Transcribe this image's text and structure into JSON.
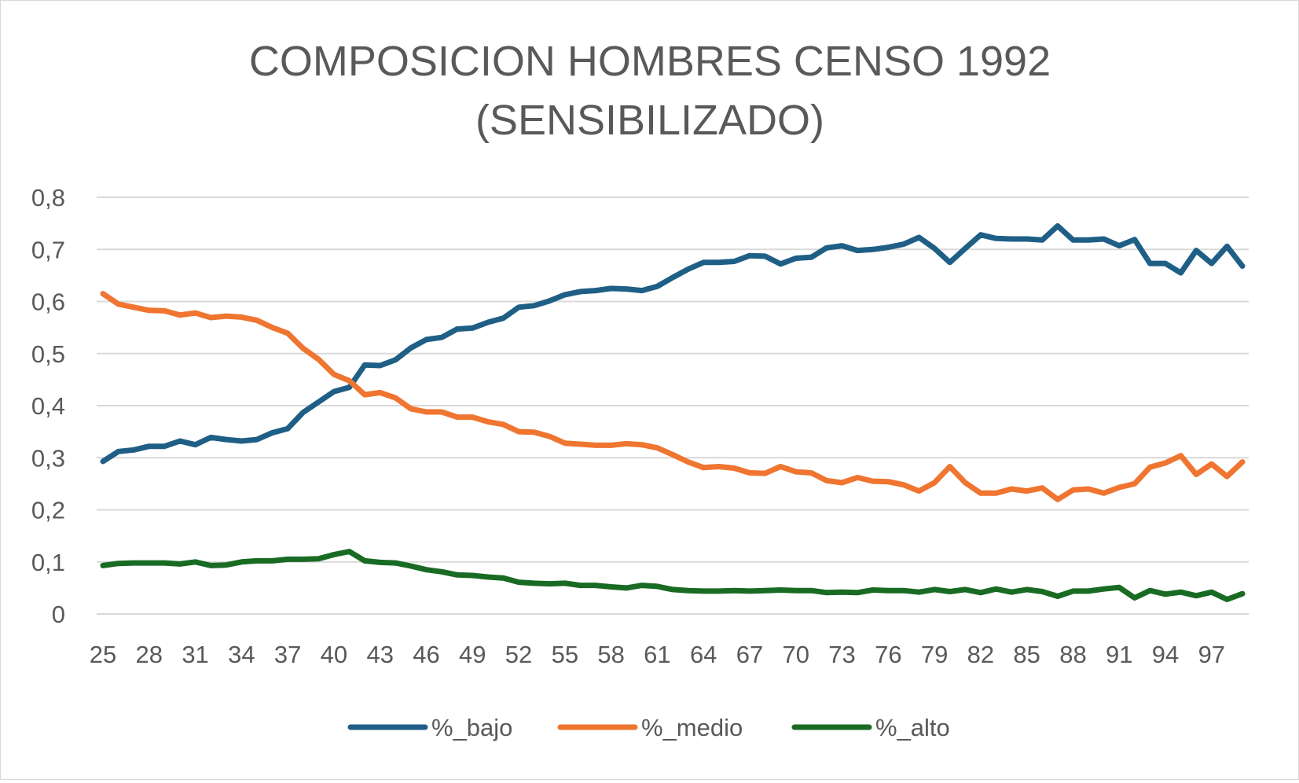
{
  "chart_data": {
    "type": "line",
    "title": [
      "COMPOSICION HOMBRES CENSO 1992",
      "(SENSIBILIZADO)"
    ],
    "xlabel": "",
    "ylabel": "",
    "x": [
      25,
      26,
      27,
      28,
      29,
      30,
      31,
      32,
      33,
      34,
      35,
      36,
      37,
      38,
      39,
      40,
      41,
      42,
      43,
      44,
      45,
      46,
      47,
      48,
      49,
      50,
      51,
      52,
      53,
      54,
      55,
      56,
      57,
      58,
      59,
      60,
      61,
      62,
      63,
      64,
      65,
      66,
      67,
      68,
      69,
      70,
      71,
      72,
      73,
      74,
      75,
      76,
      77,
      78,
      79,
      80,
      81,
      82,
      83,
      84,
      85,
      86,
      87,
      88,
      89,
      90,
      91,
      92,
      93,
      94,
      95,
      96,
      97,
      98,
      99
    ],
    "x_tick_labels": [
      "25",
      "28",
      "31",
      "34",
      "37",
      "40",
      "43",
      "46",
      "49",
      "52",
      "55",
      "58",
      "61",
      "64",
      "67",
      "70",
      "73",
      "76",
      "79",
      "82",
      "85",
      "88",
      "91",
      "94",
      "97"
    ],
    "x_tick_values": [
      25,
      28,
      31,
      34,
      37,
      40,
      43,
      46,
      49,
      52,
      55,
      58,
      61,
      64,
      67,
      70,
      73,
      76,
      79,
      82,
      85,
      88,
      91,
      94,
      97
    ],
    "ylim": [
      0,
      0.8
    ],
    "y_ticks": [
      0,
      0.1,
      0.2,
      0.3,
      0.4,
      0.5,
      0.6,
      0.7,
      0.8
    ],
    "y_tick_labels": [
      "0",
      "0,1",
      "0,2",
      "0,3",
      "0,4",
      "0,5",
      "0,6",
      "0,7",
      "0,8"
    ],
    "grid": true,
    "legend_position": "bottom",
    "series": [
      {
        "name": "%_bajo",
        "color": "#1f5f86",
        "values": [
          0.293,
          0.312,
          0.315,
          0.322,
          0.322,
          0.332,
          0.325,
          0.339,
          0.335,
          0.332,
          0.335,
          0.348,
          0.356,
          0.387,
          0.407,
          0.427,
          0.435,
          0.478,
          0.477,
          0.488,
          0.511,
          0.527,
          0.531,
          0.547,
          0.549,
          0.56,
          0.568,
          0.589,
          0.592,
          0.601,
          0.613,
          0.619,
          0.621,
          0.625,
          0.624,
          0.621,
          0.629,
          0.646,
          0.662,
          0.675,
          0.675,
          0.677,
          0.688,
          0.687,
          0.672,
          0.683,
          0.685,
          0.703,
          0.707,
          0.698,
          0.7,
          0.704,
          0.71,
          0.723,
          0.702,
          0.675,
          0.702,
          0.728,
          0.721,
          0.72,
          0.72,
          0.718,
          0.745,
          0.718,
          0.718,
          0.72,
          0.707,
          0.719,
          0.673,
          0.673,
          0.655,
          0.698,
          0.673,
          0.706,
          0.668
        ]
      },
      {
        "name": "%_medio",
        "color": "#ef7530",
        "values": [
          0.615,
          0.595,
          0.589,
          0.583,
          0.582,
          0.574,
          0.578,
          0.569,
          0.572,
          0.57,
          0.564,
          0.55,
          0.539,
          0.51,
          0.489,
          0.46,
          0.448,
          0.421,
          0.425,
          0.415,
          0.394,
          0.388,
          0.388,
          0.378,
          0.378,
          0.369,
          0.364,
          0.35,
          0.349,
          0.341,
          0.328,
          0.326,
          0.324,
          0.324,
          0.327,
          0.325,
          0.319,
          0.306,
          0.292,
          0.281,
          0.283,
          0.28,
          0.271,
          0.27,
          0.283,
          0.273,
          0.271,
          0.256,
          0.252,
          0.262,
          0.255,
          0.254,
          0.248,
          0.236,
          0.252,
          0.283,
          0.252,
          0.232,
          0.232,
          0.24,
          0.236,
          0.242,
          0.22,
          0.238,
          0.24,
          0.232,
          0.243,
          0.25,
          0.282,
          0.29,
          0.304,
          0.268,
          0.288,
          0.264,
          0.292
        ]
      },
      {
        "name": "%_alto",
        "color": "#196b24",
        "values": [
          0.093,
          0.097,
          0.098,
          0.098,
          0.098,
          0.096,
          0.1,
          0.093,
          0.094,
          0.1,
          0.102,
          0.102,
          0.105,
          0.105,
          0.106,
          0.114,
          0.12,
          0.102,
          0.099,
          0.098,
          0.092,
          0.085,
          0.081,
          0.075,
          0.074,
          0.071,
          0.069,
          0.061,
          0.059,
          0.058,
          0.059,
          0.055,
          0.055,
          0.052,
          0.05,
          0.055,
          0.053,
          0.047,
          0.045,
          0.044,
          0.044,
          0.045,
          0.044,
          0.045,
          0.046,
          0.045,
          0.045,
          0.041,
          0.042,
          0.041,
          0.046,
          0.045,
          0.045,
          0.042,
          0.047,
          0.043,
          0.047,
          0.041,
          0.048,
          0.042,
          0.047,
          0.043,
          0.034,
          0.044,
          0.044,
          0.048,
          0.051,
          0.031,
          0.045,
          0.038,
          0.042,
          0.035,
          0.042,
          0.028,
          0.039
        ]
      }
    ]
  }
}
